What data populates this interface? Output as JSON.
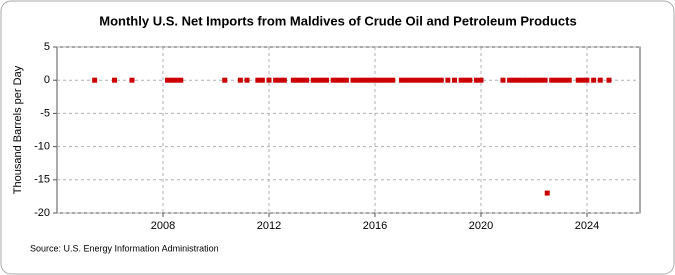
{
  "chart_data": {
    "type": "scatter",
    "title": "Monthly U.S. Net Imports from Maldives of Crude Oil and Petroleum Products",
    "y_label": "Thousand Barrels per Day",
    "source": "Source: U.S. Energy Information Administration",
    "color": "#cc0000",
    "grid": true,
    "x": [
      2005.42,
      2006.17,
      2006.83,
      2008.17,
      2008.33,
      2008.5,
      2008.67,
      2010.33,
      2010.92,
      2011.17,
      2011.58,
      2011.75,
      2012.0,
      2012.25,
      2012.42,
      2012.58,
      2012.92,
      2013.08,
      2013.25,
      2013.42,
      2013.67,
      2013.83,
      2014.0,
      2014.17,
      2014.42,
      2014.58,
      2014.75,
      2014.92,
      2015.17,
      2015.33,
      2015.5,
      2015.67,
      2015.83,
      2016.0,
      2016.17,
      2016.33,
      2016.5,
      2016.67,
      2017.0,
      2017.17,
      2017.33,
      2017.5,
      2017.67,
      2017.83,
      2018.0,
      2018.17,
      2018.33,
      2018.5,
      2018.75,
      2019.0,
      2019.25,
      2019.42,
      2019.58,
      2019.83,
      2020.0,
      2020.83,
      2021.08,
      2021.25,
      2021.42,
      2021.58,
      2021.75,
      2021.92,
      2022.08,
      2022.25,
      2022.42,
      2022.5,
      2022.67,
      2022.83,
      2023.0,
      2023.17,
      2023.33,
      2023.67,
      2023.83,
      2024.0,
      2024.25,
      2024.5,
      2024.83
    ],
    "values": [
      0,
      0,
      0,
      0,
      0,
      0,
      0,
      0,
      0,
      0,
      0,
      0,
      0,
      0,
      0,
      0,
      0,
      0,
      0,
      0,
      0,
      0,
      0,
      0,
      0,
      0,
      0,
      0,
      0,
      0,
      0,
      0,
      0,
      0,
      0,
      0,
      0,
      0,
      0,
      0,
      0,
      0,
      0,
      0,
      0,
      0,
      0,
      0,
      0,
      0,
      0,
      0,
      0,
      0,
      0,
      0,
      0,
      0,
      0,
      0,
      0,
      0,
      0,
      0,
      0,
      -17,
      0,
      0,
      0,
      0,
      0,
      0,
      0,
      0,
      0,
      0,
      0
    ],
    "xlim": [
      2004,
      2026
    ],
    "xticks": [
      2008,
      2012,
      2016,
      2020,
      2024
    ],
    "ylim": [
      -20,
      5
    ],
    "yticks": [
      -20,
      -15,
      -10,
      -5,
      0,
      5
    ]
  }
}
